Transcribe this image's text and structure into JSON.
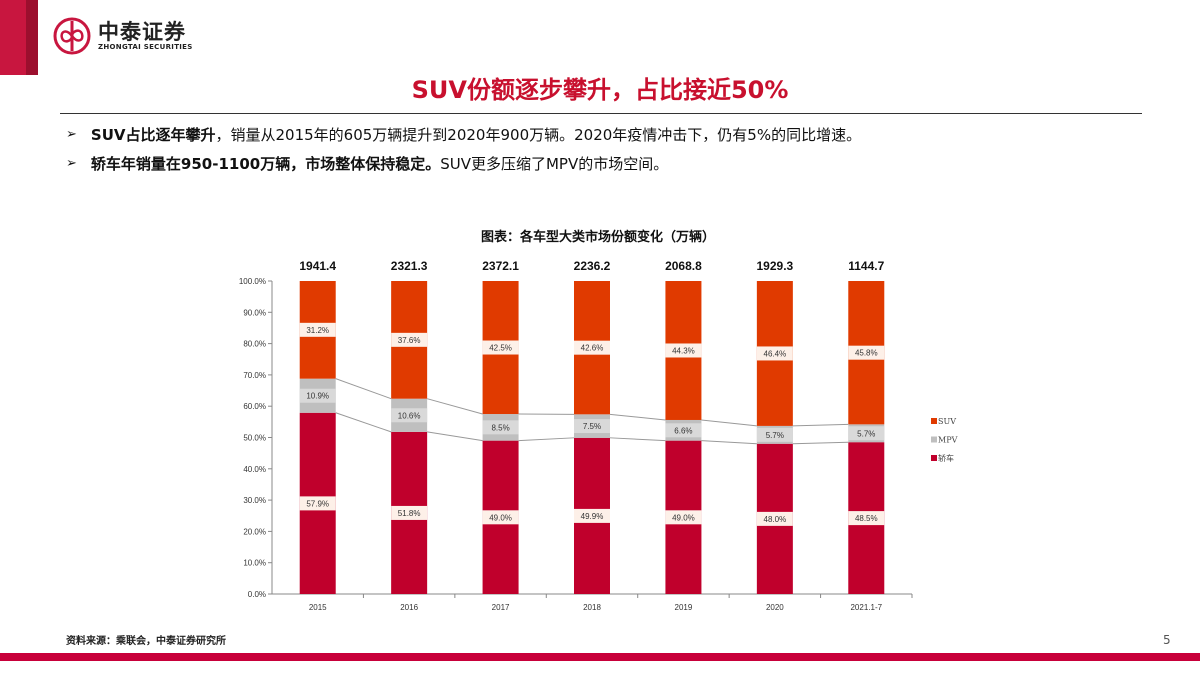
{
  "header": {
    "logo_cn": "中泰证券",
    "logo_en": "ZHONGTAI SECURITIES",
    "title": "SUV份额逐步攀升，占比接近50%"
  },
  "bullets": [
    {
      "bold": "SUV占比逐年攀升",
      "text": "，销量从2015年的605万辆提升到2020年900万辆。2020年疫情冲击下，仍有5%的同比增速。"
    },
    {
      "bold": "轿车年销量在950-1100万辆，市场整体保持稳定。",
      "text": "SUV更多压缩了MPV的市场空间。"
    }
  ],
  "chart_data": {
    "type": "bar",
    "stacked": "percent",
    "title": "图表：各车型大类市场份额变化（万辆）",
    "categories": [
      "2015",
      "2016",
      "2017",
      "2018",
      "2019",
      "2020",
      "2021.1-7"
    ],
    "totals": [
      "1941.4",
      "2321.3",
      "2372.1",
      "2236.2",
      "2068.8",
      "1929.3",
      "1144.7"
    ],
    "series": [
      {
        "name": "轿车",
        "color": "#c0002c",
        "values": [
          57.9,
          51.8,
          49.0,
          49.9,
          49.0,
          48.0,
          48.5
        ],
        "labels": [
          "57.9%",
          "51.8%",
          "49.0%",
          "49.9%",
          "49.0%",
          "48.0%",
          "48.5%"
        ]
      },
      {
        "name": "MPV",
        "color": "#bfbfbf",
        "values": [
          10.9,
          10.6,
          8.5,
          7.5,
          6.6,
          5.7,
          5.7
        ],
        "labels": [
          "10.9%",
          "10.6%",
          "8.5%",
          "7.5%",
          "6.6%",
          "5.7%",
          "5.7%"
        ]
      },
      {
        "name": "SUV",
        "color": "#e03a00",
        "values": [
          31.2,
          37.6,
          42.5,
          42.6,
          44.3,
          46.4,
          45.8
        ],
        "labels": [
          "31.2%",
          "37.6%",
          "42.5%",
          "42.6%",
          "44.3%",
          "46.4%",
          "45.8%"
        ]
      }
    ],
    "yticks": [
      "0.0%",
      "10.0%",
      "20.0%",
      "30.0%",
      "40.0%",
      "50.0%",
      "60.0%",
      "70.0%",
      "80.0%",
      "90.0%",
      "100.0%"
    ],
    "ylim": [
      0,
      100
    ],
    "legend_order": [
      "SUV",
      "MPV",
      "轿车"
    ],
    "legend_placement": "right",
    "grid": false
  },
  "footer": {
    "source": "资料来源：乘联会，中泰证券研究所",
    "page": "5"
  }
}
